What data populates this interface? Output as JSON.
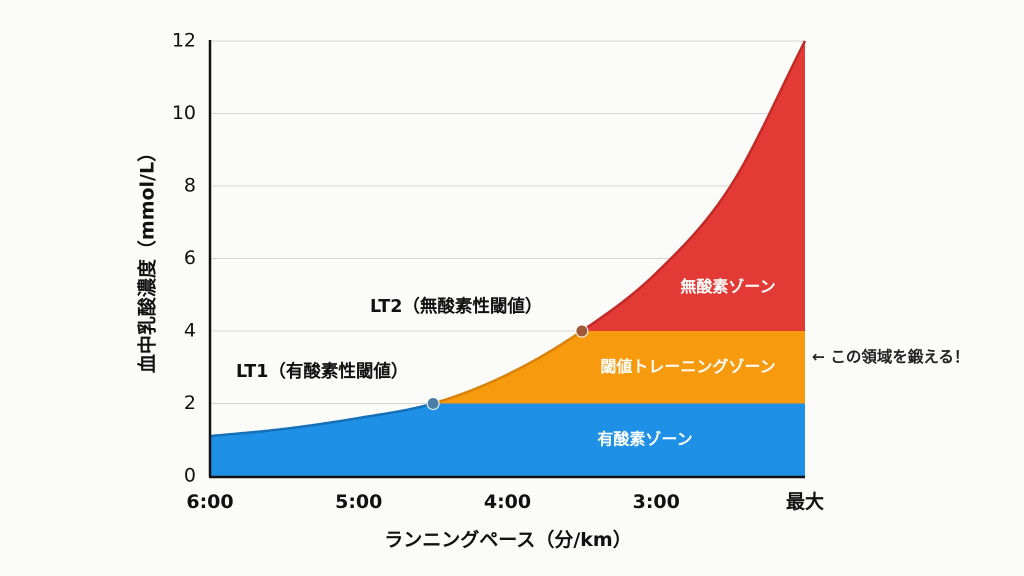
{
  "chart_data": {
    "type": "area",
    "title": "",
    "xlabel": "ランニングペース（分/km）",
    "ylabel": "血中乳酸濃度（mmol/L）",
    "x_ticks": [
      "6:00",
      "5:00",
      "4:00",
      "3:00",
      "最大"
    ],
    "y_ticks": [
      0,
      2,
      4,
      6,
      8,
      10,
      12
    ],
    "ylim": [
      0,
      12
    ],
    "grid": true,
    "x": [
      "6:00",
      "5:30",
      "5:00",
      "4:30",
      "4:00",
      "3:30",
      "3:00",
      "2:30",
      "最大"
    ],
    "y": [
      1.1,
      1.3,
      1.6,
      2.0,
      2.8,
      4.0,
      5.6,
      8.0,
      12.0
    ],
    "zones": [
      {
        "label": "有酸素ゾーン",
        "from": 0,
        "to": 2,
        "color": "#1e90e6"
      },
      {
        "label": "閾値トレーニングゾーン",
        "from": 2,
        "to": 4,
        "color": "#f79a0e"
      },
      {
        "label": "無酸素ゾーン",
        "from": 4,
        "to": 12,
        "color": "#e33a36"
      }
    ],
    "points": [
      {
        "label": "LT1（有酸素性閾値）",
        "x": "4:30",
        "y": 2.0,
        "color": "#4b7fa8"
      },
      {
        "label": "LT2（無酸素性閾値）",
        "x": "3:30",
        "y": 4.0,
        "color": "#a05a3a"
      }
    ],
    "annotation": "← この領域を鍛える！"
  }
}
